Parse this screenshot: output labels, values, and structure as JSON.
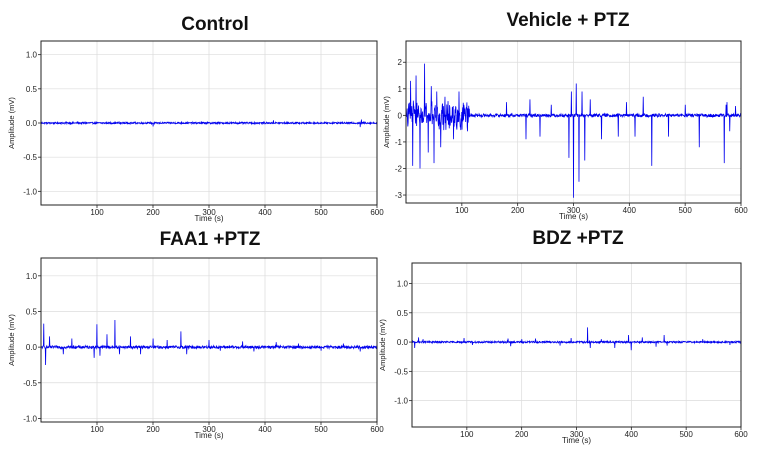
{
  "colors": {
    "trace": "#0000ee",
    "grid": "#dcdcdc",
    "axis": "#222222"
  },
  "chart_data": [
    {
      "type": "line",
      "title": "Control",
      "xlabel": "Time (s)",
      "ylabel": "Amplitude (mV)",
      "xlim": [
        0,
        600
      ],
      "ylim": [
        -1.2,
        1.2
      ],
      "xticks": [
        100,
        200,
        300,
        400,
        500,
        600
      ],
      "yticks": [
        -1.0,
        -0.5,
        0.0,
        0.5,
        1.0
      ],
      "grid": true,
      "series": [
        {
          "noise": 0.012,
          "spikes": [
            [
              200,
              -0.05
            ],
            [
              415,
              0.04
            ],
            [
              570,
              -0.06
            ],
            [
              572,
              0.05
            ]
          ]
        }
      ]
    },
    {
      "type": "line",
      "title": "Vehicle + PTZ",
      "xlabel": "Time (s)",
      "ylabel": "Amplitude (mV)",
      "xlim": [
        0,
        600
      ],
      "ylim": [
        -3.3,
        2.8
      ],
      "xticks": [
        100,
        200,
        300,
        400,
        500,
        600
      ],
      "yticks": [
        -3,
        -2,
        -1,
        0,
        1,
        2
      ],
      "grid": true,
      "series": [
        {
          "noise": 0.06,
          "bursts": [
            [
              2,
              115,
              0.55
            ]
          ],
          "spikes": [
            [
              8,
              1.3
            ],
            [
              12,
              -1.9
            ],
            [
              18,
              1.5
            ],
            [
              25,
              -2.0
            ],
            [
              33,
              1.95
            ],
            [
              40,
              -1.4
            ],
            [
              45,
              1.1
            ],
            [
              50,
              -1.8
            ],
            [
              55,
              0.9
            ],
            [
              62,
              -1.2
            ],
            [
              70,
              0.7
            ],
            [
              85,
              -0.9
            ],
            [
              95,
              0.9
            ],
            [
              110,
              -0.6
            ],
            [
              180,
              0.5
            ],
            [
              215,
              -0.9
            ],
            [
              222,
              0.6
            ],
            [
              240,
              -0.8
            ],
            [
              260,
              0.4
            ],
            [
              292,
              -1.6
            ],
            [
              296,
              0.9
            ],
            [
              300,
              -3.1
            ],
            [
              305,
              1.2
            ],
            [
              310,
              -2.5
            ],
            [
              315,
              0.9
            ],
            [
              320,
              -1.7
            ],
            [
              330,
              0.6
            ],
            [
              350,
              -0.9
            ],
            [
              380,
              -0.8
            ],
            [
              395,
              0.5
            ],
            [
              410,
              -0.8
            ],
            [
              425,
              0.7
            ],
            [
              440,
              -1.9
            ],
            [
              470,
              -0.8
            ],
            [
              500,
              0.4
            ],
            [
              525,
              -1.2
            ],
            [
              570,
              -1.8
            ],
            [
              573,
              0.4
            ],
            [
              575,
              0.5
            ],
            [
              580,
              -0.6
            ],
            [
              590,
              0.35
            ]
          ]
        }
      ]
    },
    {
      "type": "line",
      "title": "FAA1 +PTZ",
      "xlabel": "Time (s)",
      "ylabel": "Amplitude (mV)",
      "xlim": [
        0,
        600
      ],
      "ylim": [
        -1.05,
        1.25
      ],
      "xticks": [
        100,
        200,
        300,
        400,
        500,
        600
      ],
      "yticks": [
        -1.0,
        -0.5,
        0.0,
        0.5,
        1.0
      ],
      "grid": true,
      "series": [
        {
          "noise": 0.02,
          "spikes": [
            [
              5,
              0.33
            ],
            [
              8,
              -0.25
            ],
            [
              15,
              0.15
            ],
            [
              40,
              -0.1
            ],
            [
              55,
              0.12
            ],
            [
              95,
              -0.15
            ],
            [
              100,
              0.32
            ],
            [
              105,
              -0.12
            ],
            [
              118,
              0.18
            ],
            [
              132,
              0.38
            ],
            [
              140,
              -0.1
            ],
            [
              160,
              0.15
            ],
            [
              178,
              -0.1
            ],
            [
              200,
              0.12
            ],
            [
              225,
              0.1
            ],
            [
              250,
              0.22
            ],
            [
              260,
              -0.1
            ],
            [
              300,
              0.1
            ],
            [
              320,
              -0.05
            ],
            [
              360,
              0.08
            ],
            [
              380,
              -0.06
            ],
            [
              420,
              0.07
            ],
            [
              460,
              0.05
            ],
            [
              500,
              -0.05
            ],
            [
              540,
              0.05
            ],
            [
              570,
              -0.06
            ]
          ]
        }
      ]
    },
    {
      "type": "line",
      "title": "BDZ +PTZ",
      "xlabel": "Time (s)",
      "ylabel": "Amplitude (mV)",
      "xlim": [
        0,
        600
      ],
      "ylim": [
        -1.45,
        1.35
      ],
      "xticks": [
        100,
        200,
        300,
        400,
        500,
        600
      ],
      "yticks": [
        -1.0,
        -0.5,
        0.0,
        0.5,
        1.0
      ],
      "grid": true,
      "series": [
        {
          "noise": 0.015,
          "spikes": [
            [
              5,
              -0.1
            ],
            [
              12,
              0.08
            ],
            [
              20,
              0.05
            ],
            [
              95,
              0.07
            ],
            [
              110,
              -0.05
            ],
            [
              175,
              0.06
            ],
            [
              180,
              -0.07
            ],
            [
              200,
              0.05
            ],
            [
              225,
              0.06
            ],
            [
              270,
              -0.06
            ],
            [
              290,
              0.07
            ],
            [
              320,
              0.25
            ],
            [
              325,
              -0.1
            ],
            [
              345,
              0.05
            ],
            [
              370,
              -0.1
            ],
            [
              395,
              0.12
            ],
            [
              400,
              -0.14
            ],
            [
              420,
              0.08
            ],
            [
              445,
              -0.08
            ],
            [
              460,
              0.12
            ],
            [
              465,
              -0.06
            ],
            [
              530,
              0.05
            ],
            [
              580,
              -0.05
            ]
          ]
        }
      ]
    }
  ]
}
